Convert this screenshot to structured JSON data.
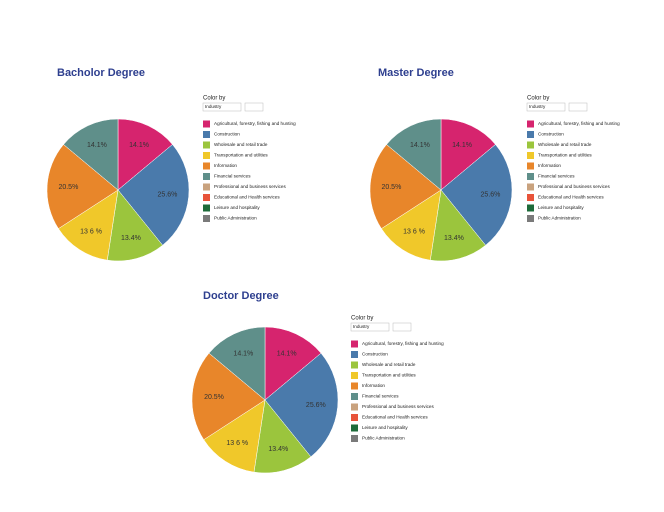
{
  "chart_data": [
    {
      "type": "pie",
      "title": "Bacholor Degree",
      "legend_title": "Color by",
      "legend_select": "Industry",
      "categories": [
        "Agricultural, forestry, fishing and hunting",
        "Construction",
        "Wholesale and retail trade",
        "Transportation and utilities",
        "Information",
        "Financial services",
        "Professional and business services",
        "Educational and Health services",
        "Leisure and hospitality",
        "Public Administration"
      ],
      "values": [
        14.1,
        25.6,
        13.4,
        13.6,
        20.5,
        14.1,
        null,
        null,
        null,
        null
      ],
      "value_labels": [
        "14.1%",
        "25.6%",
        "13.4%",
        "13 6 %",
        "20.5%",
        "14.1%",
        null,
        null,
        null,
        null
      ],
      "colors": [
        "#d6246e",
        "#4a7aab",
        "#9bc53d",
        "#f0c82a",
        "#e8862a",
        "#5f8f8a",
        "#c9a27e",
        "#e8533a",
        "#1d6b3a",
        "#7a7a7a"
      ]
    },
    {
      "type": "pie",
      "title": "Master Degree",
      "legend_title": "Color by",
      "legend_select": "Industry",
      "categories": [
        "Agricultural, forestry, fishing and hunting",
        "Construction",
        "Wholesale and retail trade",
        "Transportation and utilities",
        "Information",
        "Financial services",
        "Professional and business services",
        "Educational and Health services",
        "Leisure and hospitality",
        "Public Administration"
      ],
      "values": [
        14.1,
        25.6,
        13.4,
        13.6,
        20.5,
        14.1,
        null,
        null,
        null,
        null
      ],
      "value_labels": [
        "14.1%",
        "25.6%",
        "13.4%",
        "13 6 %",
        "20.5%",
        "14.1%",
        null,
        null,
        null,
        null
      ],
      "colors": [
        "#d6246e",
        "#4a7aab",
        "#9bc53d",
        "#f0c82a",
        "#e8862a",
        "#5f8f8a",
        "#c9a27e",
        "#e8533a",
        "#1d6b3a",
        "#7a7a7a"
      ]
    },
    {
      "type": "pie",
      "title": "Doctor Degree",
      "legend_title": "Color by",
      "legend_select": "Industry",
      "categories": [
        "Agricultural, forestry, fishing and hunting",
        "Construction",
        "Wholesale and retail trade",
        "Transportation and utilities",
        "Information",
        "Financial services",
        "Professional and business services",
        "Educational and Health services",
        "Leisure and hospitality",
        "Public Administration"
      ],
      "values": [
        14.1,
        25.6,
        13.4,
        13.6,
        20.5,
        14.1,
        null,
        null,
        null,
        null
      ],
      "value_labels": [
        "14.1%",
        "25.6%",
        "13.4%",
        "13 6 %",
        "20.5%",
        "14.1%",
        null,
        null,
        null,
        null
      ],
      "colors": [
        "#d6246e",
        "#4a7aab",
        "#9bc53d",
        "#f0c82a",
        "#e8862a",
        "#5f8f8a",
        "#c9a27e",
        "#e8533a",
        "#1d6b3a",
        "#7a7a7a"
      ]
    }
  ]
}
